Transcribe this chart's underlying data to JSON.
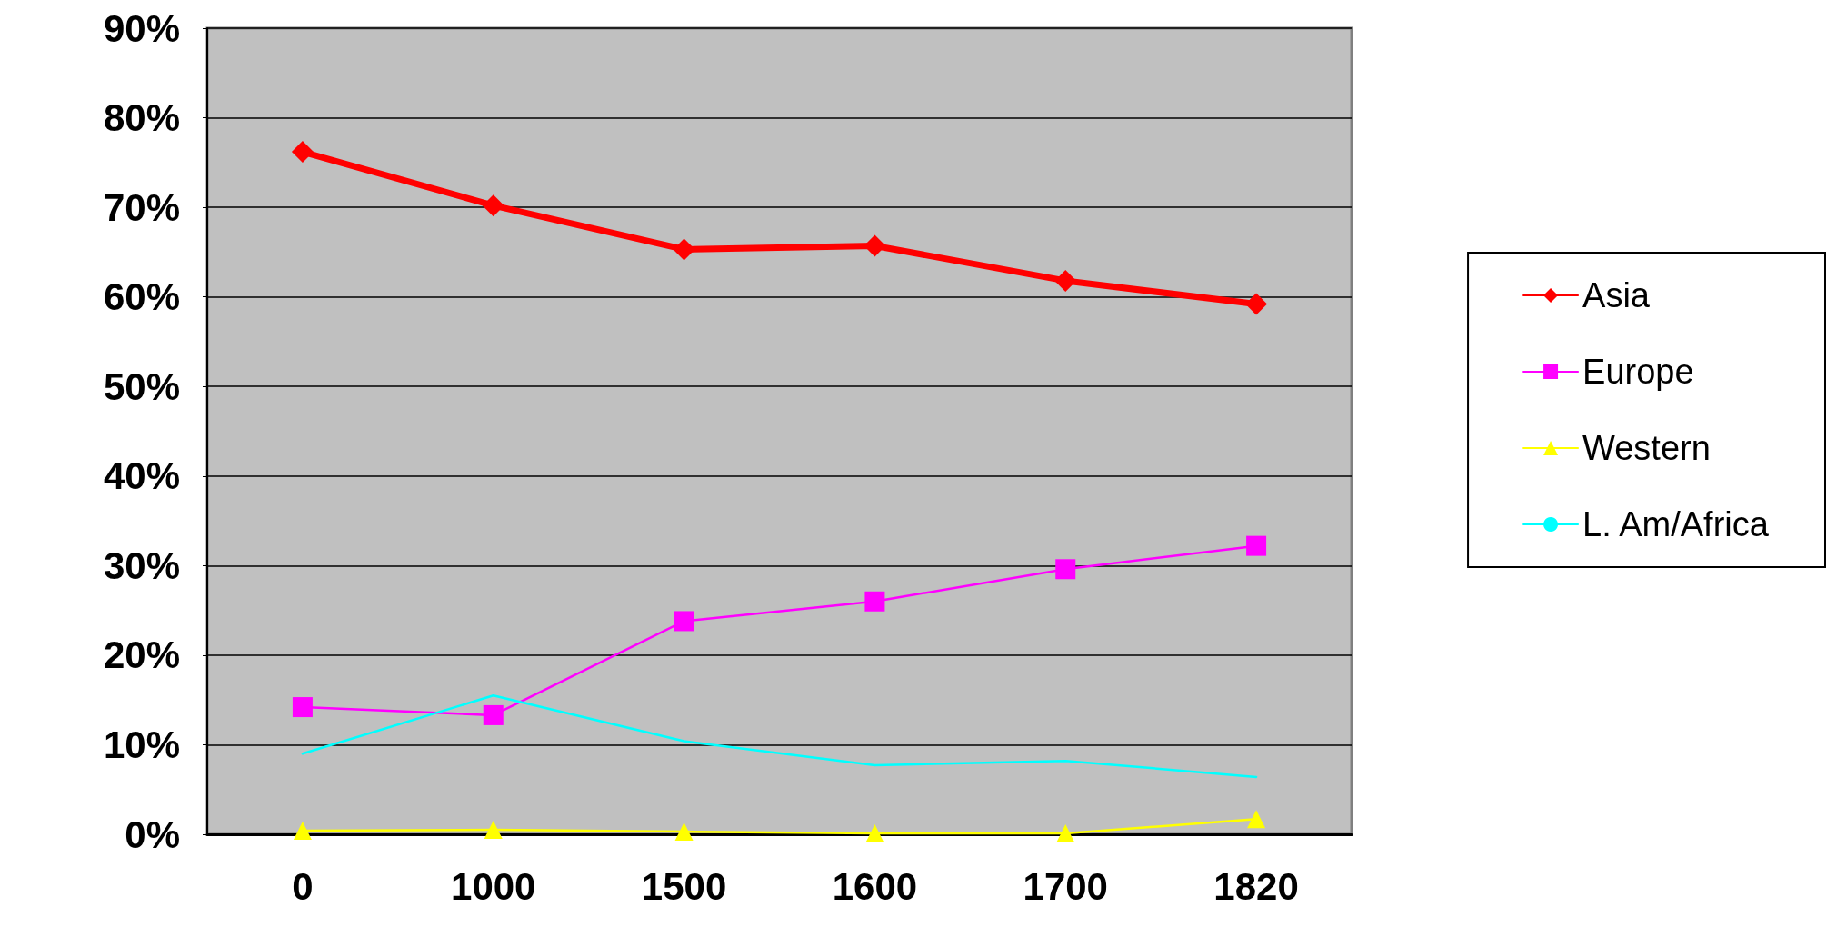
{
  "chart_data": {
    "type": "line",
    "categories": [
      "0",
      "1000",
      "1500",
      "1600",
      "1700",
      "1820"
    ],
    "series": [
      {
        "name": "Asia",
        "color": "#ff0000",
        "marker": "diamond",
        "values": [
          76.2,
          70.2,
          65.3,
          65.7,
          61.8,
          59.2
        ]
      },
      {
        "name": "Europe",
        "color": "#ff00ff",
        "marker": "square",
        "values": [
          14.2,
          13.3,
          23.8,
          26.0,
          29.6,
          32.2
        ]
      },
      {
        "name": "Western",
        "color": "#ffff00",
        "marker": "triangle",
        "values": [
          0.4,
          0.5,
          0.3,
          0.1,
          0.1,
          1.7
        ]
      },
      {
        "name": "L. Am/Africa",
        "color": "#00ffff",
        "marker": "none",
        "values": [
          9.0,
          15.5,
          10.4,
          7.7,
          8.2,
          6.4
        ]
      }
    ],
    "ylim": [
      0,
      90
    ],
    "yticks": [
      {
        "value": 0,
        "label": "0%"
      },
      {
        "value": 10,
        "label": "10%"
      },
      {
        "value": 20,
        "label": "20%"
      },
      {
        "value": 30,
        "label": "30%"
      },
      {
        "value": 40,
        "label": "40%"
      },
      {
        "value": 50,
        "label": "50%"
      },
      {
        "value": 60,
        "label": "60%"
      },
      {
        "value": 70,
        "label": "70%"
      },
      {
        "value": 80,
        "label": "80%"
      },
      {
        "value": 90,
        "label": "90%"
      }
    ],
    "grid": "y",
    "legend": "right",
    "line_style": "solid"
  }
}
